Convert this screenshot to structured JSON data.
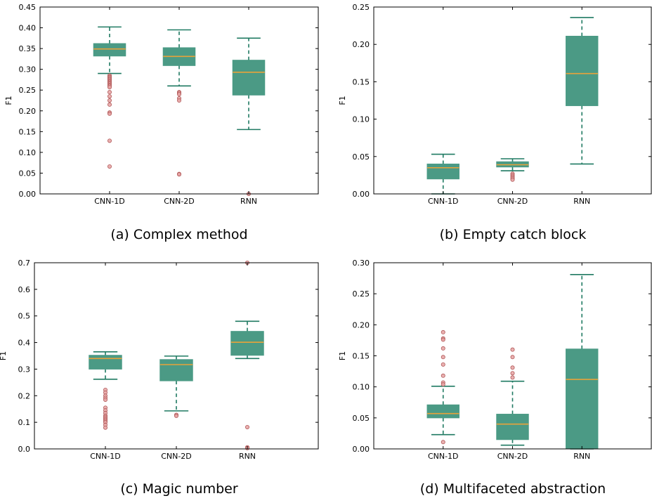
{
  "colors": {
    "box": "#4b9a85",
    "median": "#e8a33a",
    "whisker": "#1f7a62",
    "outlier_fill": "#e6a3a3",
    "outlier_edge": "#b05858"
  },
  "chart_data": [
    {
      "type": "box",
      "caption": "(a) Complex method",
      "ylabel": "F1",
      "ylim": [
        0,
        0.45
      ],
      "yticks": [
        "0.00",
        "0.05",
        "0.10",
        "0.15",
        "0.20",
        "0.25",
        "0.30",
        "0.35",
        "0.40",
        "0.45"
      ],
      "categories": [
        "CNN-1D",
        "CNN-2D",
        "RNN"
      ],
      "boxes": [
        {
          "whislo": 0.29,
          "q1": 0.332,
          "med": 0.349,
          "q3": 0.362,
          "whishi": 0.402,
          "fliers": [
            0.285,
            0.282,
            0.28,
            0.277,
            0.275,
            0.272,
            0.27,
            0.267,
            0.265,
            0.262,
            0.26,
            0.257,
            0.245,
            0.235,
            0.225,
            0.215,
            0.196,
            0.193,
            0.128,
            0.066
          ]
        },
        {
          "whislo": 0.26,
          "q1": 0.309,
          "med": 0.331,
          "q3": 0.352,
          "whishi": 0.395,
          "fliers": [
            0.245,
            0.243,
            0.24,
            0.23,
            0.225,
            0.048,
            0.047
          ]
        },
        {
          "whislo": 0.155,
          "q1": 0.238,
          "med": 0.293,
          "q3": 0.322,
          "whishi": 0.375,
          "fliers": [
            0.0
          ]
        }
      ]
    },
    {
      "type": "box",
      "caption": "(b) Empty catch block",
      "ylabel": "F1",
      "ylim": [
        0,
        0.25
      ],
      "yticks": [
        "0.00",
        "0.05",
        "0.10",
        "0.15",
        "0.20",
        "0.25"
      ],
      "categories": [
        "CNN-1D",
        "CNN-2D",
        "RNN"
      ],
      "boxes": [
        {
          "whislo": 0.0,
          "q1": 0.02,
          "med": 0.035,
          "q3": 0.04,
          "whishi": 0.053,
          "fliers": []
        },
        {
          "whislo": 0.031,
          "q1": 0.036,
          "med": 0.039,
          "q3": 0.043,
          "whishi": 0.047,
          "fliers": [
            0.027,
            0.025,
            0.023,
            0.021,
            0.019
          ]
        },
        {
          "whislo": 0.04,
          "q1": 0.118,
          "med": 0.161,
          "q3": 0.211,
          "whishi": 0.236,
          "fliers": []
        }
      ]
    },
    {
      "type": "box",
      "caption": "(c) Magic number",
      "ylabel": "F1",
      "ylim": [
        0,
        0.7
      ],
      "yticks": [
        "0.0",
        "0.1",
        "0.2",
        "0.3",
        "0.4",
        "0.5",
        "0.6",
        "0.7"
      ],
      "categories": [
        "CNN-1D",
        "CNN-2D",
        "RNN"
      ],
      "boxes": [
        {
          "whislo": 0.262,
          "q1": 0.3,
          "med": 0.34,
          "q3": 0.352,
          "whishi": 0.365,
          "fliers": [
            0.222,
            0.212,
            0.2,
            0.192,
            0.185,
            0.155,
            0.145,
            0.135,
            0.125,
            0.12,
            0.115,
            0.11,
            0.105,
            0.1,
            0.09,
            0.08
          ]
        },
        {
          "whislo": 0.143,
          "q1": 0.256,
          "med": 0.317,
          "q3": 0.336,
          "whishi": 0.349,
          "fliers": [
            0.128,
            0.124
          ]
        },
        {
          "whislo": 0.34,
          "q1": 0.352,
          "med": 0.401,
          "q3": 0.442,
          "whishi": 0.48,
          "fliers": [
            0.7,
            0.082,
            0.006,
            0.003
          ]
        }
      ]
    },
    {
      "type": "box",
      "caption": "(d) Multifaceted abstraction",
      "ylabel": "F1",
      "ylim": [
        0,
        0.3
      ],
      "yticks": [
        "0.00",
        "0.05",
        "0.10",
        "0.15",
        "0.20",
        "0.25",
        "0.30"
      ],
      "categories": [
        "CNN-1D",
        "CNN-2D",
        "RNN"
      ],
      "boxes": [
        {
          "whislo": 0.023,
          "q1": 0.05,
          "med": 0.057,
          "q3": 0.071,
          "whishi": 0.101,
          "fliers": [
            0.188,
            0.178,
            0.176,
            0.162,
            0.148,
            0.136,
            0.118,
            0.107,
            0.104,
            0.011
          ]
        },
        {
          "whislo": 0.006,
          "q1": 0.015,
          "med": 0.04,
          "q3": 0.056,
          "whishi": 0.109,
          "fliers": [
            0.16,
            0.148,
            0.131,
            0.122,
            0.115
          ]
        },
        {
          "whislo": 0.0,
          "q1": 0.0,
          "med": 0.112,
          "q3": 0.161,
          "whishi": 0.281,
          "fliers": []
        }
      ]
    }
  ]
}
